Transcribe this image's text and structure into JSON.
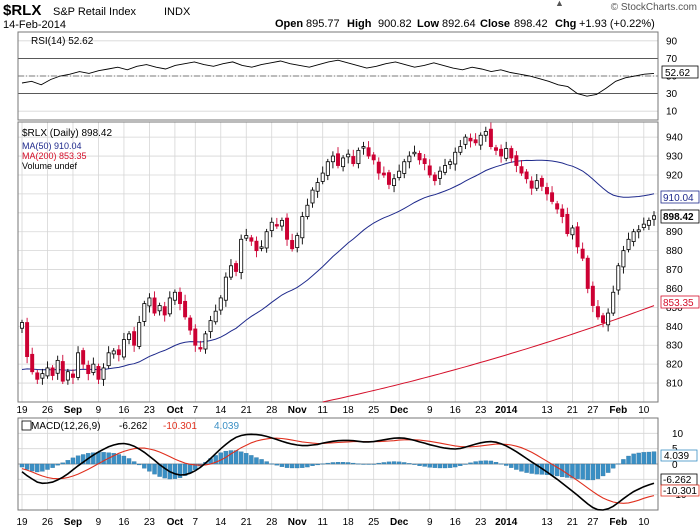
{
  "header": {
    "symbol": "$RLX",
    "name": "S&P Retail Index",
    "exchange": "INDX",
    "date": "14-Feb-2014",
    "open_label": "Open",
    "open": "895.77",
    "high_label": "High",
    "high": "900.82",
    "low_label": "Low",
    "low": "892.64",
    "close_label": "Close",
    "close": "898.42",
    "chg_label": "Chg",
    "chg": "+1.93 (+0.22%)",
    "brand": "© StockCharts.com",
    "brand_arrow": "▲"
  },
  "colors": {
    "up": "#000000",
    "down": "#cc0033",
    "ma50": "#1f2a8c",
    "ma200": "#d40f2a",
    "macd": "#000000",
    "signal": "#e0301e",
    "hist": "#3a8fc4",
    "grid": "#d6d6d6"
  },
  "chart_data": [
    {
      "type": "line",
      "panel": "RSI",
      "label": "RSI(14) 52.62",
      "ylim": [
        0,
        100
      ],
      "ticks": [
        "90",
        "70",
        "50",
        "30",
        "10"
      ],
      "ref_levels": [
        70,
        30
      ],
      "last_value_label": "52.62",
      "values": [
        42,
        44,
        40,
        46,
        50,
        52,
        55,
        53,
        56,
        58,
        60,
        57,
        61,
        63,
        60,
        58,
        62,
        64,
        66,
        63,
        61,
        64,
        66,
        62,
        60,
        63,
        65,
        67,
        64,
        62,
        60,
        63,
        66,
        68,
        65,
        62,
        59,
        61,
        64,
        66,
        63,
        60,
        62,
        65,
        62,
        59,
        57,
        60,
        58,
        55,
        57,
        54,
        52,
        50,
        47,
        44,
        40,
        38,
        30,
        27,
        29,
        36,
        44,
        48,
        50,
        52,
        53
      ]
    },
    {
      "type": "candlestick",
      "panel": "price",
      "title": "$RLX (Daily) 898.42",
      "legend": [
        "MA(50) 910.04",
        "MA(200) 853.35",
        "Volume undef"
      ],
      "ylim": [
        800,
        948
      ],
      "y_ticks": [
        "940",
        "930",
        "920",
        "910",
        "900",
        "890",
        "880",
        "870",
        "860",
        "850",
        "840",
        "830",
        "820",
        "810"
      ],
      "x_ticks": [
        "19",
        "26",
        "Sep",
        "9",
        "16",
        "23",
        "Oct",
        "7",
        "14",
        "21",
        "28",
        "Nov",
        "11",
        "18",
        "25",
        "Dec",
        "9",
        "16",
        "23",
        "2014",
        "13",
        "21",
        "27",
        "Feb",
        "10"
      ],
      "x_tick_bar_index": [
        0,
        5,
        10,
        15,
        20,
        25,
        30,
        34,
        39,
        44,
        49,
        54,
        59,
        64,
        69,
        74,
        80,
        85,
        90,
        95,
        103,
        108,
        112,
        117,
        122
      ],
      "price_labels": {
        "ma50": "910.04",
        "close": "898.42",
        "ma200": "853.35"
      },
      "ma50_range": [
        816,
        910.04
      ],
      "ma200_range": [
        800,
        853.35
      ],
      "close": [
        842,
        824,
        816,
        812,
        815,
        818,
        814,
        822,
        811,
        816,
        813,
        826,
        820,
        815,
        820,
        812,
        818,
        826,
        827,
        825,
        833,
        836,
        830,
        842,
        852,
        855,
        847,
        851,
        846,
        855,
        858,
        852,
        845,
        838,
        830,
        828,
        836,
        843,
        848,
        855,
        866,
        872,
        869,
        886,
        888,
        885,
        880,
        882,
        890,
        895,
        893,
        896,
        886,
        881,
        888,
        898,
        904,
        912,
        916,
        921,
        927,
        930,
        925,
        929,
        931,
        926,
        933,
        935,
        930,
        928,
        921,
        920,
        915,
        918,
        922,
        927,
        930,
        932,
        928,
        926,
        920,
        917,
        922,
        925,
        927,
        932,
        935,
        940,
        938,
        937,
        941,
        943,
        935,
        933,
        930,
        934,
        929,
        925,
        921,
        918,
        913,
        917,
        914,
        910,
        906,
        902,
        898,
        889,
        892,
        882,
        876,
        860,
        851,
        845,
        842,
        847,
        858,
        872,
        880,
        886,
        890,
        891,
        894,
        896,
        898.42
      ]
    },
    {
      "type": "line",
      "panel": "MACD",
      "label_prefix": "MACD(12,26,9)",
      "label_values": [
        "-6.262",
        "-10.301",
        "4.039"
      ],
      "ylim": [
        -15,
        15
      ],
      "ticks": [
        "10",
        "5",
        "0",
        "-5",
        "-10"
      ],
      "value_labels": [
        "4.039",
        "0",
        "-6.262",
        "-10.301"
      ],
      "macd": [
        -2.5,
        -3.8,
        -4.9,
        -5.9,
        -6.3,
        -6.2,
        -5.9,
        -5.2,
        -4.3,
        -3.2,
        -1.9,
        -0.6,
        0.6,
        1.8,
        2.9,
        3.9,
        4.8,
        5.6,
        6.2,
        6.6,
        6.7,
        6.4,
        5.8,
        4.9,
        3.8,
        2.5,
        1.2,
        -0.2,
        -1.4,
        -2.5,
        -3.2,
        -3.6,
        -3.5,
        -3.0,
        -2.2,
        -1.1,
        0.3,
        1.8,
        3.4,
        5.0,
        6.4,
        7.7,
        8.7,
        9.3,
        9.6,
        9.7,
        9.6,
        9.4,
        9.0,
        8.5,
        8.0,
        7.4,
        6.9,
        6.5,
        6.2,
        6.0,
        6.0,
        6.2,
        6.4,
        6.8,
        7.1,
        7.4,
        7.6,
        7.7,
        7.7,
        7.6,
        7.4,
        7.2,
        7.2,
        7.3,
        7.6,
        7.9,
        8.2,
        8.4,
        8.5,
        8.4,
        8.1,
        7.7,
        7.2,
        6.8,
        6.3,
        5.9,
        5.5,
        5.2,
        5.0,
        4.9,
        5.1,
        5.5,
        6.0,
        6.5,
        6.9,
        7.2,
        7.3,
        7.1,
        6.6,
        5.9,
        5.0,
        4.0,
        2.9,
        1.8,
        0.7,
        -0.4,
        -1.5,
        -2.6,
        -3.8,
        -5.0,
        -6.3,
        -7.6,
        -8.9,
        -10.2,
        -11.6,
        -13.0,
        -14.2,
        -14.9,
        -15.0,
        -14.6,
        -13.8,
        -12.6,
        -11.3,
        -10.1,
        -9.0,
        -8.2,
        -7.4,
        -6.8,
        -6.262
      ],
      "signal": [
        -1.5,
        -2.0,
        -2.6,
        -3.3,
        -3.9,
        -4.4,
        -4.7,
        -4.8,
        -4.7,
        -4.4,
        -3.9,
        -3.3,
        -2.5,
        -1.7,
        -0.8,
        0.1,
        1.0,
        1.9,
        2.7,
        3.5,
        4.1,
        4.6,
        5.0,
        5.2,
        5.2,
        4.9,
        4.5,
        3.9,
        3.2,
        2.4,
        1.6,
        0.9,
        0.3,
        -0.1,
        -0.3,
        -0.4,
        -0.3,
        0.0,
        0.6,
        1.3,
        2.2,
        3.3,
        4.3,
        5.3,
        6.1,
        6.9,
        7.5,
        7.9,
        8.2,
        8.4,
        8.4,
        8.3,
        8.1,
        7.8,
        7.5,
        7.2,
        7.0,
        6.8,
        6.7,
        6.7,
        6.8,
        6.9,
        7.0,
        7.1,
        7.2,
        7.3,
        7.3,
        7.3,
        7.3,
        7.3,
        7.3,
        7.4,
        7.5,
        7.6,
        7.8,
        7.9,
        7.9,
        7.9,
        7.8,
        7.6,
        7.4,
        7.1,
        6.8,
        6.5,
        6.2,
        5.9,
        5.7,
        5.6,
        5.6,
        5.7,
        5.9,
        6.1,
        6.3,
        6.5,
        6.5,
        6.4,
        6.2,
        5.8,
        5.3,
        4.6,
        3.8,
        2.9,
        1.9,
        0.9,
        -0.1,
        -1.1,
        -2.1,
        -3.2,
        -4.3,
        -5.4,
        -6.6,
        -7.8,
        -9.0,
        -10.1,
        -11.1,
        -11.8,
        -12.4,
        -12.7,
        -12.8,
        -12.7,
        -12.3,
        -11.8,
        -11.2,
        -10.7,
        -10.301
      ]
    }
  ]
}
